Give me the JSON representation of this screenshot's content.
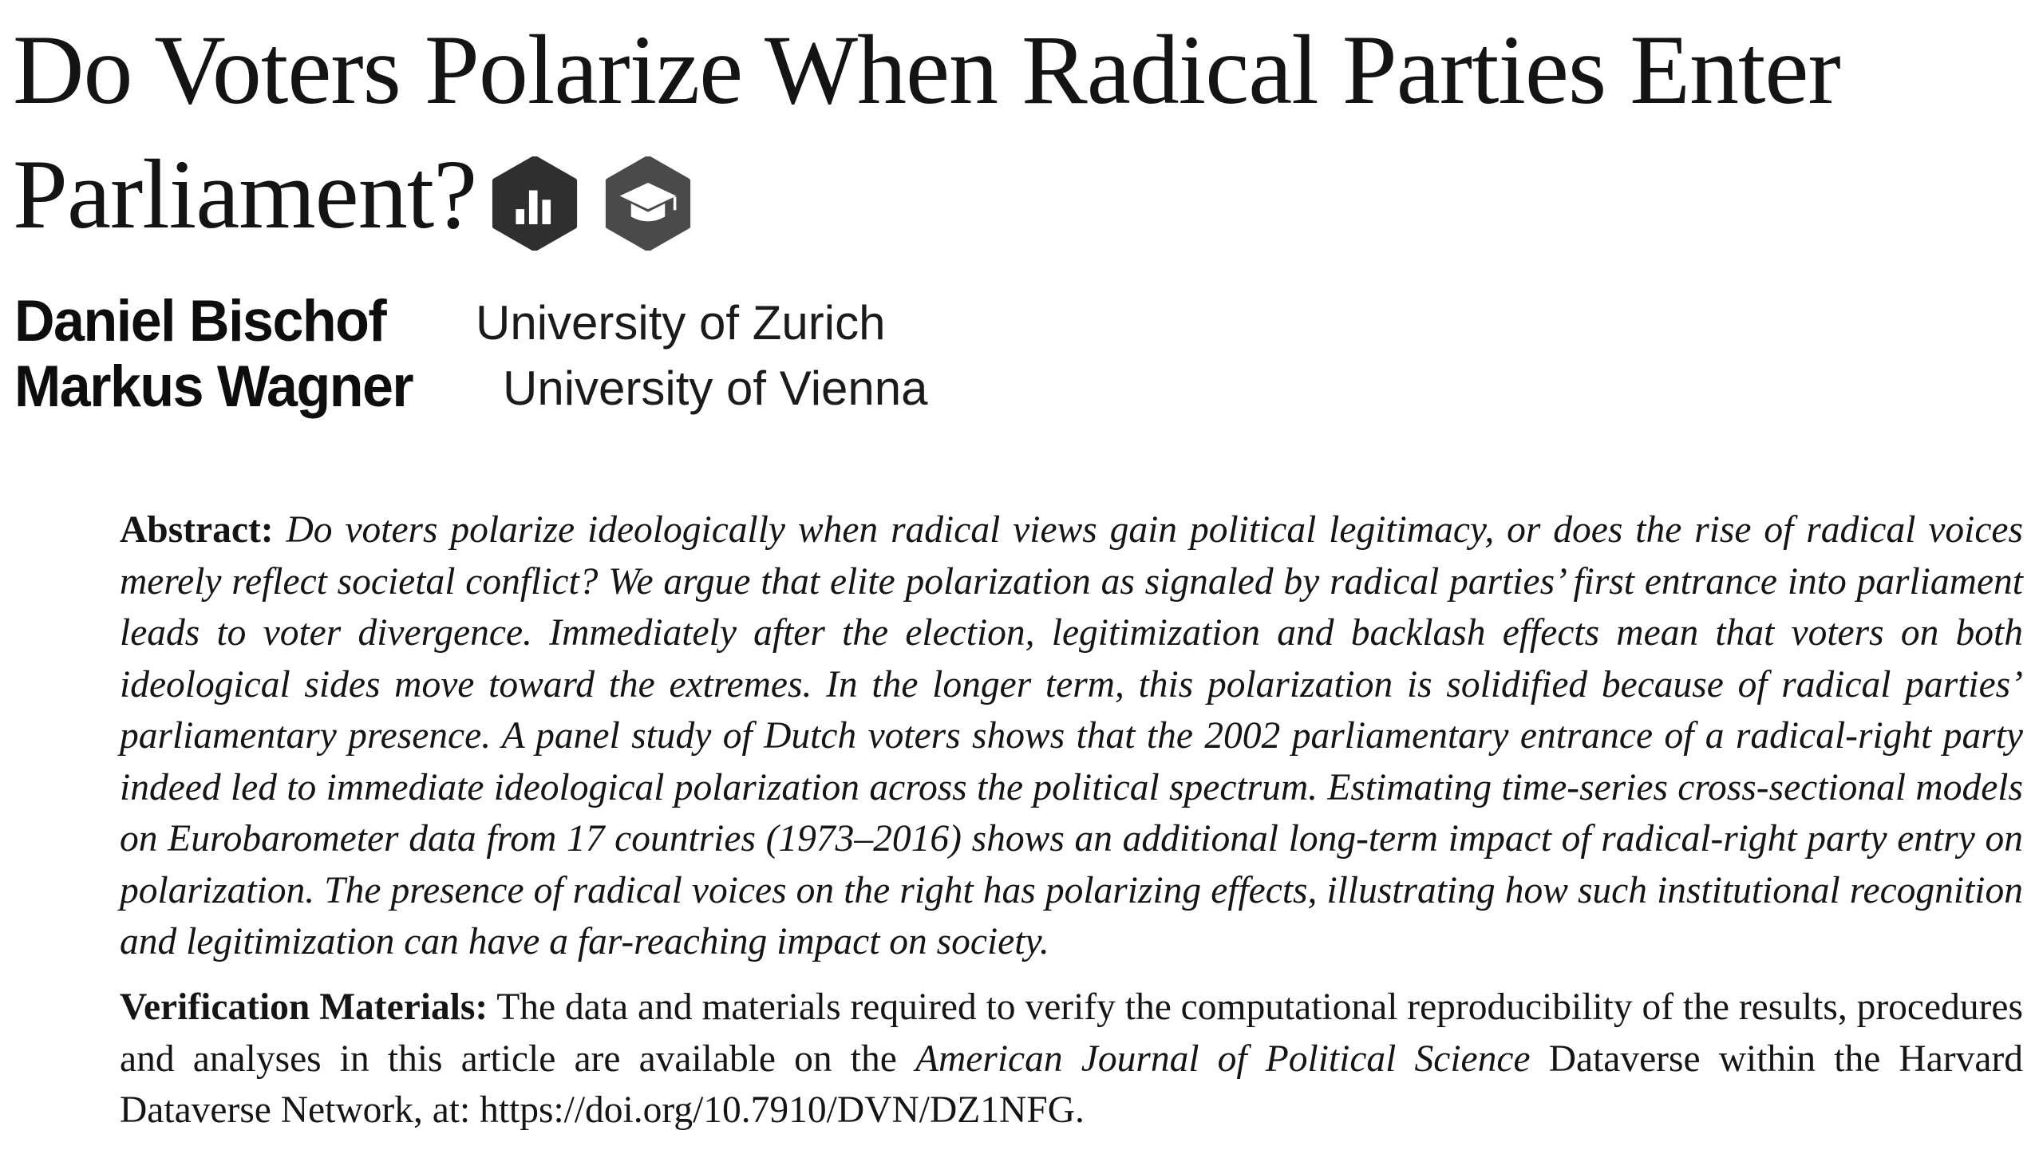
{
  "title": "Do Voters Polarize When Radical Parties Enter Parliament?",
  "badges": [
    {
      "icon": "open-data-icon",
      "color": "#2f2f2f"
    },
    {
      "icon": "open-materials-icon",
      "color": "#4a4a4a"
    }
  ],
  "authors": [
    {
      "name": "Daniel Bischof",
      "affiliation": "University of Zurich"
    },
    {
      "name": "Markus Wagner",
      "affiliation": "University of Vienna"
    }
  ],
  "abstract": {
    "label": "Abstract:",
    "text": "Do voters polarize ideologically when radical views gain political legitimacy, or does the rise of radical voices merely reflect societal conflict? We argue that elite polarization as signaled by radical parties’ first entrance into parliament leads to voter divergence. Immediately after the election, legitimization and backlash effects mean that voters on both ideological sides move toward the extremes. In the longer term, this polarization is solidified because of radical parties’ parliamentary presence. A panel study of Dutch voters shows that the 2002 parliamentary entrance of a radical-right party indeed led to immediate ideological polarization across the political spectrum. Estimating time-series cross-sectional models on Eurobarometer data from 17 countries (1973–2016) shows an additional long-term impact of radical-right party entry on polarization. The presence of radical voices on the right has polarizing effects, illustrating how such institutional recognition and legitimization can have a far-reaching impact on society."
  },
  "verification": {
    "label": "Verification Materials:",
    "text_before": "The data and materials required to verify the computational reproducibility of the results, procedures and analyses in this article are available on the",
    "journal": "American Journal of Political Science",
    "text_after": "Dataverse within the Harvard Dataverse Network, at: https://doi.org/10.7910/DVN/DZ1NFG."
  }
}
